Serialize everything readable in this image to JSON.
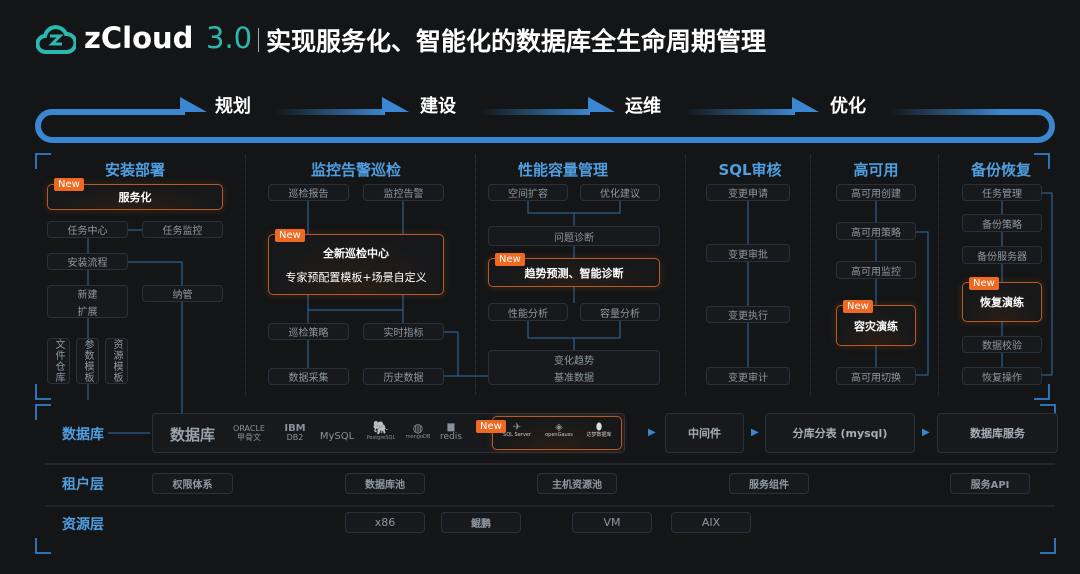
{
  "header": {
    "logo_text": "zCloud",
    "version": "3.0",
    "title": "实现服务化、智能化的数据库全生命周期管理"
  },
  "flow": [
    "规划",
    "建设",
    "运维",
    "优化"
  ],
  "new_badge": "New",
  "colors": {
    "accent_blue": "#3a86d0",
    "heading_blue": "#4f9ee0",
    "new_orange": "#ee6a23",
    "background": "#141516"
  },
  "columns": [
    {
      "title": "安装部署",
      "items": [
        "服务化",
        "任务中心",
        "任务监控",
        "安装流程",
        "新建",
        "扩展",
        "纳管",
        "文件仓库",
        "参数模板",
        "资源模板"
      ]
    },
    {
      "title": "监控告警巡检",
      "items": [
        "巡检报告",
        "监控告警",
        "全新巡检中心",
        "专家预配置模板+场景自定义",
        "巡检策略",
        "实时指标",
        "数据采集",
        "历史数据"
      ]
    },
    {
      "title": "性能容量管理",
      "items": [
        "空间扩容",
        "优化建议",
        "问题诊断",
        "趋势预测、智能诊断",
        "性能分析",
        "容量分析",
        "变化趋势",
        "基准数据"
      ]
    },
    {
      "title": "SQL审核",
      "items": [
        "变更申请",
        "变更审批",
        "变更执行",
        "变更审计"
      ]
    },
    {
      "title": "高可用",
      "items": [
        "高可用创建",
        "高可用策略",
        "高可用监控",
        "容灾演练",
        "高可用切换"
      ]
    },
    {
      "title": "备份恢复",
      "items": [
        "任务管理",
        "备份策略",
        "备份服务器",
        "恢复演练",
        "数据校验",
        "恢复操作"
      ]
    }
  ],
  "layers": {
    "database": {
      "label": "数据库",
      "box_title": "数据库",
      "logos": [
        "ORACLE",
        "甲骨文",
        "IBM",
        "DB2",
        "MySQL",
        "PostgreSQL",
        "mongoDB",
        "redis",
        "SQL Server",
        "openGauss",
        "达梦数据库"
      ],
      "middleware": "中间件",
      "sharding": "分库分表 (mysql)",
      "db_service": "数据库服务"
    },
    "tenant": {
      "label": "租户层",
      "items": [
        "权限体系",
        "数据库池",
        "主机资源池",
        "服务组件",
        "服务API"
      ]
    },
    "resource": {
      "label": "资源层",
      "items": [
        "x86",
        "鲲鹏",
        "VM",
        "AIX"
      ]
    }
  }
}
